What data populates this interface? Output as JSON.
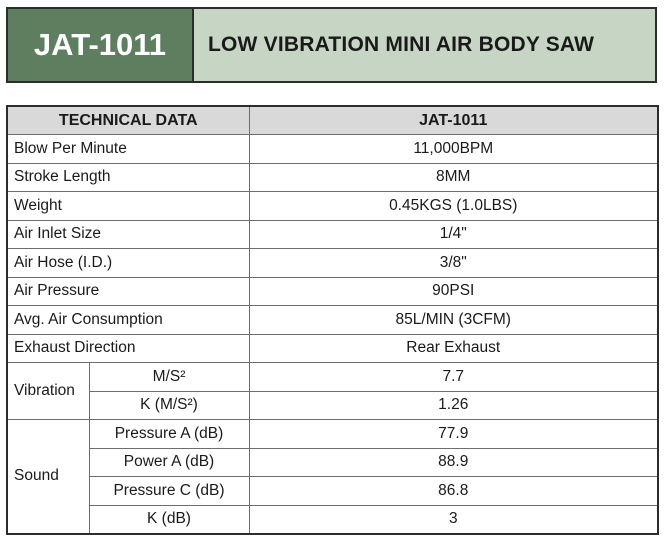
{
  "banner": {
    "model": "JAT-1011",
    "title": "LOW VIBRATION MINI AIR BODY SAW"
  },
  "table": {
    "header": {
      "label": "TECHNICAL DATA",
      "model": "JAT-1011"
    },
    "rows": [
      {
        "label": "Blow Per Minute",
        "value": "11,000BPM"
      },
      {
        "label": "Stroke Length",
        "value": "8MM"
      },
      {
        "label": "Weight",
        "value": "0.45KGS (1.0LBS)"
      },
      {
        "label": "Air Inlet Size",
        "value": "1/4\""
      },
      {
        "label": "Air Hose (I.D.)",
        "value": "3/8\""
      },
      {
        "label": "Air Pressure",
        "value": "90PSI"
      },
      {
        "label": "Avg. Air Consumption",
        "value": "85L/MIN (3CFM)"
      },
      {
        "label": "Exhaust Direction",
        "value": "Rear Exhaust"
      }
    ],
    "vibration": {
      "label": "Vibration",
      "rows": [
        {
          "label": "M/S²",
          "value": "7.7"
        },
        {
          "label": "K (M/S²)",
          "value": "1.26"
        }
      ]
    },
    "sound": {
      "label": "Sound",
      "rows": [
        {
          "label": "Pressure A (dB)",
          "value": "77.9"
        },
        {
          "label": "Power A (dB)",
          "value": "88.9"
        },
        {
          "label": "Pressure C (dB)",
          "value": "86.8"
        },
        {
          "label": "K (dB)",
          "value": "3"
        }
      ]
    }
  },
  "colors": {
    "banner_code_bg": "#5e7e60",
    "banner_title_bg": "#c7d6c4",
    "header_bg": "#d9d9d9"
  }
}
